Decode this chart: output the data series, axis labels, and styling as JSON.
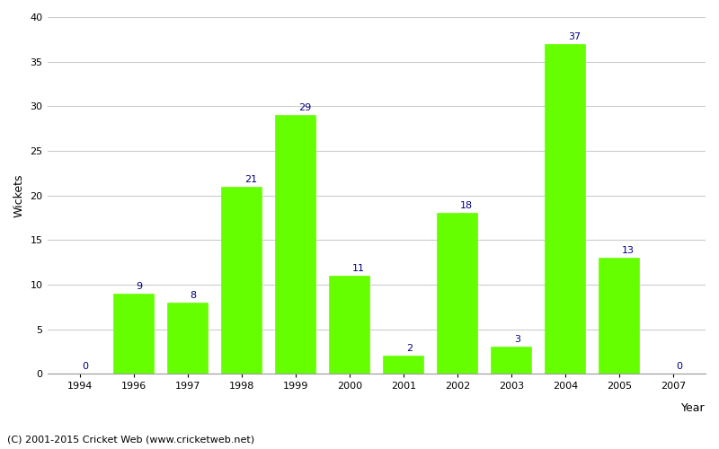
{
  "years": [
    "1994",
    "1996",
    "1997",
    "1998",
    "1999",
    "2000",
    "2001",
    "2002",
    "2003",
    "2004",
    "2005",
    "2007"
  ],
  "values": [
    0,
    9,
    8,
    21,
    29,
    11,
    2,
    18,
    3,
    37,
    13,
    0
  ],
  "bar_color": "#66ff00",
  "bar_edge_color": "#66ff00",
  "label_color": "#000080",
  "ylabel": "Wickets",
  "xlabel": "Year",
  "ylim": [
    0,
    40
  ],
  "yticks": [
    0,
    5,
    10,
    15,
    20,
    25,
    30,
    35,
    40
  ],
  "background_color": "#ffffff",
  "grid_color": "#cccccc",
  "footer": "(C) 2001-2015 Cricket Web (www.cricketweb.net)",
  "label_fontsize": 8,
  "axis_label_fontsize": 9,
  "tick_fontsize": 8,
  "footer_fontsize": 8
}
